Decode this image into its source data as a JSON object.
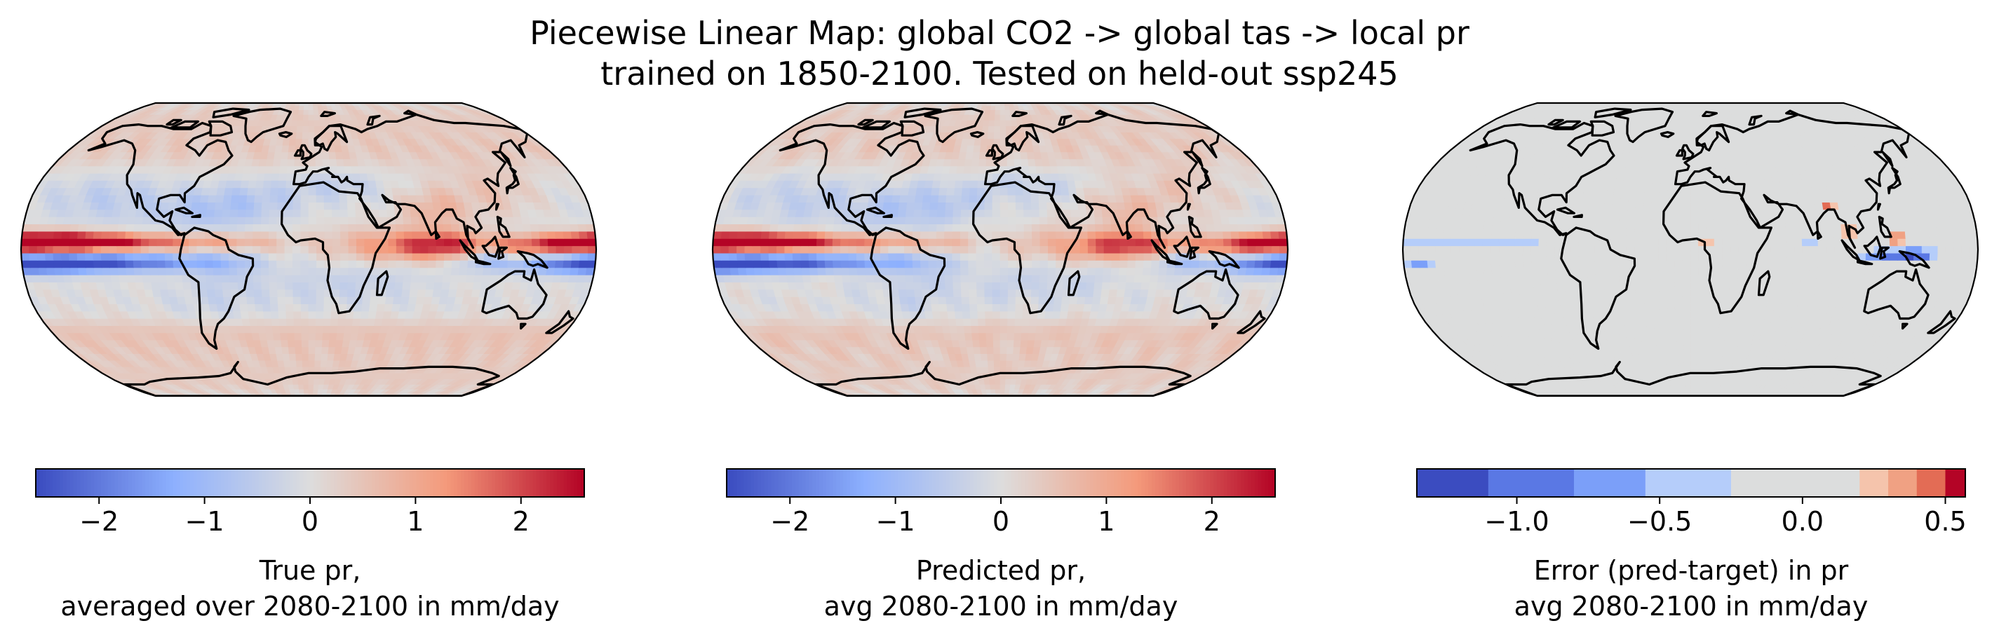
{
  "title_line1": "Piecewise Linear Map: global CO2 -> global tas -> local pr",
  "title_line2": "trained on 1850-2100. Tested on held-out ssp245",
  "chart_data": [
    {
      "type": "heatmap",
      "map_projection": "Robinson",
      "field": "true precipitation change",
      "colormap": "coolwarm",
      "color_range": [
        -2.6,
        2.6
      ],
      "colorbar_ticks": [
        -2,
        -1,
        0,
        1,
        2
      ],
      "colorbar_tick_labels": [
        "−2",
        "−1",
        "0",
        "1",
        "2"
      ],
      "colorbar_label_line1": "True pr,",
      "colorbar_label_line2": "averaged over 2080-2100 in mm/day",
      "colorbar_type": "continuous"
    },
    {
      "type": "heatmap",
      "map_projection": "Robinson",
      "field": "predicted precipitation change",
      "colormap": "coolwarm",
      "color_range": [
        -2.6,
        2.6
      ],
      "colorbar_ticks": [
        -2,
        -1,
        0,
        1,
        2
      ],
      "colorbar_tick_labels": [
        "−2",
        "−1",
        "0",
        "1",
        "2"
      ],
      "colorbar_label_line1": "Predicted pr,",
      "colorbar_label_line2": "avg 2080-2100 in mm/day",
      "colorbar_type": "continuous"
    },
    {
      "type": "heatmap",
      "map_projection": "Robinson",
      "field": "prediction error",
      "colormap": "coolwarm",
      "color_range": [
        -1.35,
        0.57
      ],
      "colorbar_ticks": [
        -1.0,
        -0.5,
        0.0,
        0.5
      ],
      "colorbar_tick_labels": [
        "−1.0",
        "−0.5",
        "0.0",
        "0.5"
      ],
      "colorbar_boundaries": [
        -1.35,
        -1.1,
        -0.8,
        -0.55,
        -0.25,
        0.2,
        0.3,
        0.4,
        0.5,
        0.57
      ],
      "colorbar_colors": [
        "#3b4cc0",
        "#5a78e4",
        "#7b9ff9",
        "#b5cdfa",
        "#dcdddd",
        "#f5c4ac",
        "#f0a183",
        "#e36c55",
        "#b40426"
      ],
      "colorbar_label_line1": "Error (pred-target) in pr",
      "colorbar_label_line2": "avg 2080-2100 in mm/day",
      "colorbar_type": "discrete"
    }
  ]
}
